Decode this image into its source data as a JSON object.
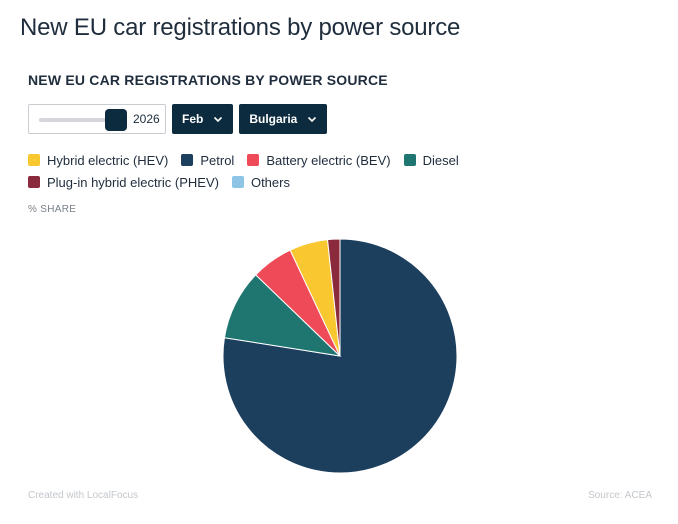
{
  "page": {
    "title": "New EU car registrations by power source"
  },
  "chart_heading": "NEW EU CAR REGISTRATIONS BY POWER SOURCE",
  "controls": {
    "year": "2026",
    "month": "Feb",
    "country": "Bulgaria"
  },
  "legend": [
    {
      "label": "Hybrid electric (HEV)",
      "color": "#f9c72f"
    },
    {
      "label": "Petrol",
      "color": "#1c3f5e"
    },
    {
      "label": "Battery electric (BEV)",
      "color": "#ef4a57"
    },
    {
      "label": "Diesel",
      "color": "#1f7570"
    },
    {
      "label": "Plug-in hybrid electric (PHEV)",
      "color": "#8b2a3c"
    },
    {
      "label": "Others",
      "color": "#8ec5e6"
    }
  ],
  "axis_label": "% SHARE",
  "footer": {
    "credit": "Created with LocalFocus",
    "source": "Source:  ACEA"
  },
  "chart_data": {
    "type": "pie",
    "title": "NEW EU CAR REGISTRATIONS BY POWER SOURCE",
    "unit": "% SHARE",
    "slices": [
      {
        "name": "Petrol",
        "value": 77.5,
        "color": "#1c3f5e"
      },
      {
        "name": "Diesel",
        "value": 9.7,
        "color": "#1f7570"
      },
      {
        "name": "Battery electric (BEV)",
        "value": 5.8,
        "color": "#ef4a57"
      },
      {
        "name": "Hybrid electric (HEV)",
        "value": 5.3,
        "color": "#f9c72f"
      },
      {
        "name": "Plug-in hybrid electric (PHEV)",
        "value": 1.7,
        "color": "#8b2a3c"
      },
      {
        "name": "Others",
        "value": 0,
        "color": "#8ec5e6"
      }
    ]
  }
}
